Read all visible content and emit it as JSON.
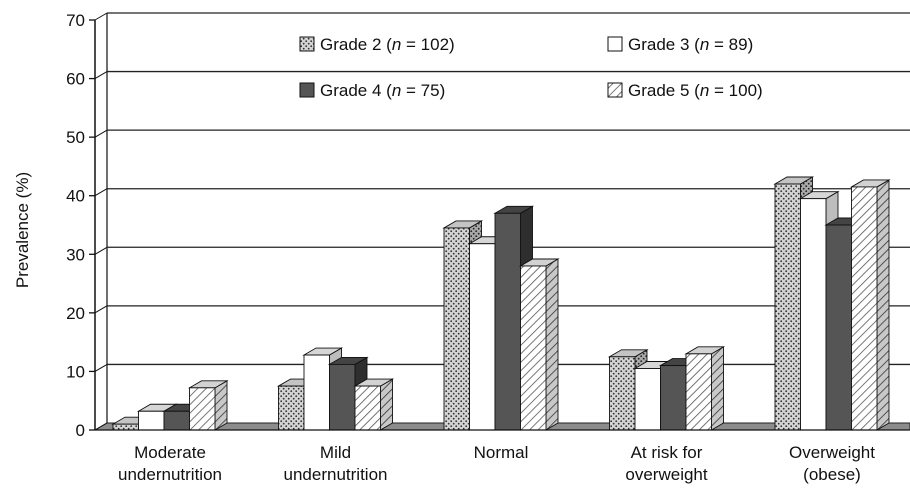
{
  "chart_data": {
    "type": "bar",
    "ylabel": "Prevalence (%)",
    "ylim": [
      0,
      70
    ],
    "yticks": [
      "0",
      "10",
      "20",
      "30",
      "40",
      "50",
      "60",
      "70"
    ],
    "grid": true,
    "legend_position": "top",
    "categories": [
      [
        "Moderate",
        "undernutrition"
      ],
      [
        "Mild",
        "undernutrition"
      ],
      [
        "Normal"
      ],
      [
        "At risk for",
        "overweight"
      ],
      [
        "Overweight",
        "(obese)"
      ]
    ],
    "series": [
      {
        "name": "Grade 2",
        "n_label": "n",
        "n_value": "= 102",
        "pattern": "dots",
        "values": [
          1.0,
          7.5,
          34.5,
          12.5,
          42.0
        ]
      },
      {
        "name": "Grade 3",
        "n_label": "n",
        "n_value": "= 89",
        "pattern": "white",
        "values": [
          3.2,
          12.8,
          31.8,
          10.5,
          39.5
        ]
      },
      {
        "name": "Grade 4",
        "n_label": "n",
        "n_value": "= 75",
        "pattern": "dark",
        "values": [
          3.2,
          11.2,
          37.0,
          11.0,
          35.0
        ]
      },
      {
        "name": "Grade 5",
        "n_label": "n",
        "n_value": "= 100",
        "pattern": "hatch",
        "values": [
          7.2,
          7.5,
          28.0,
          13.0,
          41.5
        ]
      }
    ]
  }
}
